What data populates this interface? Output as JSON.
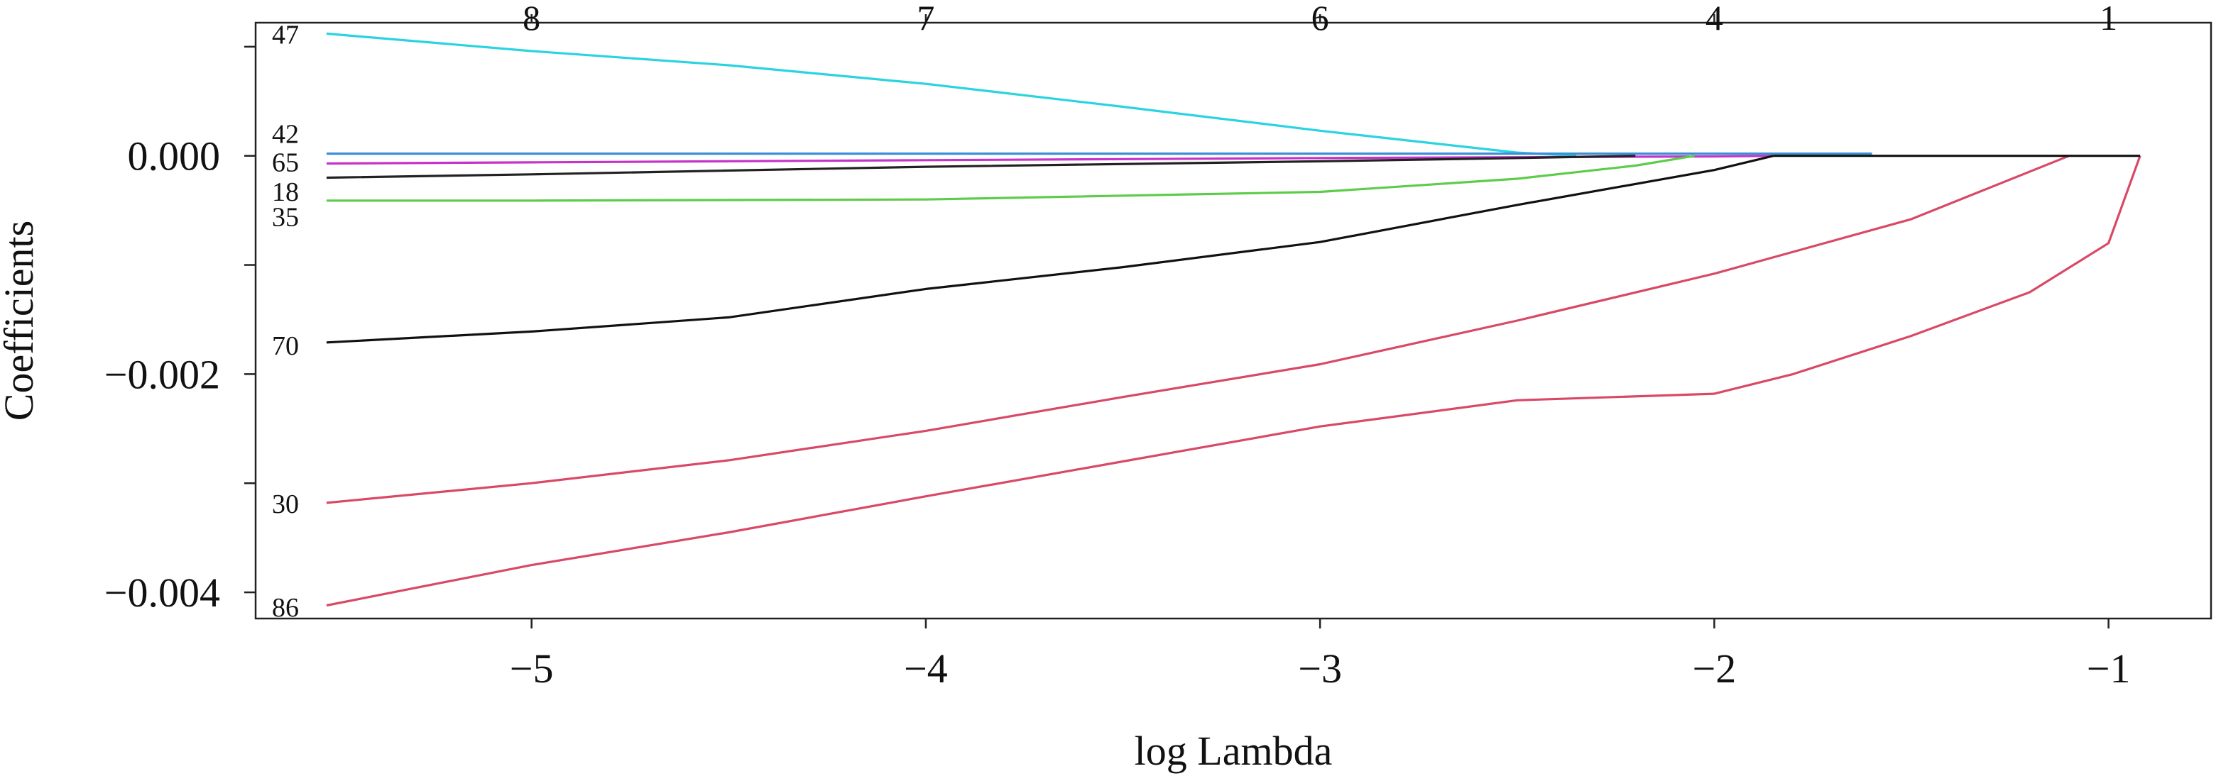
{
  "chart_data": {
    "type": "line",
    "xlabel": "log Lambda",
    "ylabel": "Coefficients",
    "xlim": [
      -5.7,
      -0.74
    ],
    "ylim": [
      -0.00424,
      0.00122
    ],
    "x_ticks": [
      -5,
      -4,
      -3,
      -2,
      -1
    ],
    "x_tick_labels": [
      "−5",
      "−4",
      "−3",
      "−2",
      "−1"
    ],
    "y_ticks": [
      0.001,
      0.0,
      -0.001,
      -0.002,
      -0.003,
      -0.004
    ],
    "y_tick_labels": [
      "",
      "0.000",
      "",
      "−0.002",
      "",
      "−0.004"
    ],
    "top_ticks": [
      -5,
      -4,
      -3,
      -2,
      -1
    ],
    "top_tick_labels": [
      "8",
      "7",
      "6",
      "4",
      "1"
    ],
    "grid": false,
    "series": [
      {
        "name": "47",
        "color": "#2ad3e0",
        "x": [
          -5.52,
          -5.0,
          -4.5,
          -4.0,
          -3.5,
          -3.0,
          -2.5,
          -2.35
        ],
        "y": [
          0.00112,
          0.00096,
          0.00083,
          0.00066,
          0.00045,
          0.00023,
          3e-05,
          0.0
        ]
      },
      {
        "name": "42",
        "color": "#3b8fd6",
        "x": [
          -5.52,
          -1.6
        ],
        "y": [
          2e-05,
          2e-05
        ]
      },
      {
        "name": "65",
        "color": "#c533c9",
        "x": [
          -5.52,
          -5.0,
          -4.0,
          -3.0,
          -2.0,
          -1.85
        ],
        "y": [
          -7e-05,
          -6e-05,
          -4e-05,
          -2e-05,
          -5e-06,
          0.0
        ]
      },
      {
        "name": "18",
        "color": "#222222",
        "x": [
          -5.52,
          -5.0,
          -4.0,
          -3.0,
          -2.5,
          -2.2
        ],
        "y": [
          -0.0002,
          -0.00017,
          -0.0001,
          -5e-05,
          -2e-05,
          0.0
        ]
      },
      {
        "name": "35",
        "color": "#5ccc4a",
        "x": [
          -5.52,
          -5.0,
          -4.0,
          -3.0,
          -2.5,
          -2.2,
          -2.05
        ],
        "y": [
          -0.00041,
          -0.00041,
          -0.0004,
          -0.00033,
          -0.00021,
          -9e-05,
          0.0
        ]
      },
      {
        "name": "70",
        "color": "#111111",
        "x": [
          -5.52,
          -5.0,
          -4.5,
          -4.0,
          -3.5,
          -3.0,
          -2.5,
          -2.0,
          -1.85
        ],
        "y": [
          -0.00171,
          -0.00161,
          -0.00148,
          -0.00122,
          -0.00102,
          -0.00079,
          -0.00045,
          -0.00013,
          0.0
        ]
      },
      {
        "name": "30",
        "color": "#d94966",
        "x": [
          -5.52,
          -5.0,
          -4.5,
          -4.0,
          -3.5,
          -3.0,
          -2.5,
          -2.0,
          -1.5,
          -1.1
        ],
        "y": [
          -0.00318,
          -0.003,
          -0.00279,
          -0.00252,
          -0.00221,
          -0.00191,
          -0.00151,
          -0.00108,
          -0.00058,
          0.0
        ]
      },
      {
        "name": "86",
        "color": "#d94966",
        "x": [
          -5.52,
          -5.0,
          -4.5,
          -4.0,
          -3.5,
          -3.0,
          -2.5,
          -2.0,
          -1.8,
          -1.5,
          -1.2,
          -1.0,
          -0.92
        ],
        "y": [
          -0.00412,
          -0.00375,
          -0.00345,
          -0.00312,
          -0.0028,
          -0.00248,
          -0.00224,
          -0.00218,
          -0.002,
          -0.00165,
          -0.00125,
          -0.0008,
          0.0
        ]
      },
      {
        "name": "",
        "color": "#111111",
        "x": [
          -1.85,
          -0.92
        ],
        "y": [
          0.0,
          0.0
        ]
      }
    ],
    "line_labels": [
      {
        "text": "47",
        "y": 0.00112
      },
      {
        "text": "42",
        "y": 0.00021
      },
      {
        "text": "65",
        "y": -5e-05
      },
      {
        "text": "18",
        "y": -0.00032
      },
      {
        "text": "35",
        "y": -0.00055
      },
      {
        "text": "70",
        "y": -0.00173
      },
      {
        "text": "30",
        "y": -0.00318
      },
      {
        "text": "86",
        "y": -0.00413
      }
    ]
  }
}
